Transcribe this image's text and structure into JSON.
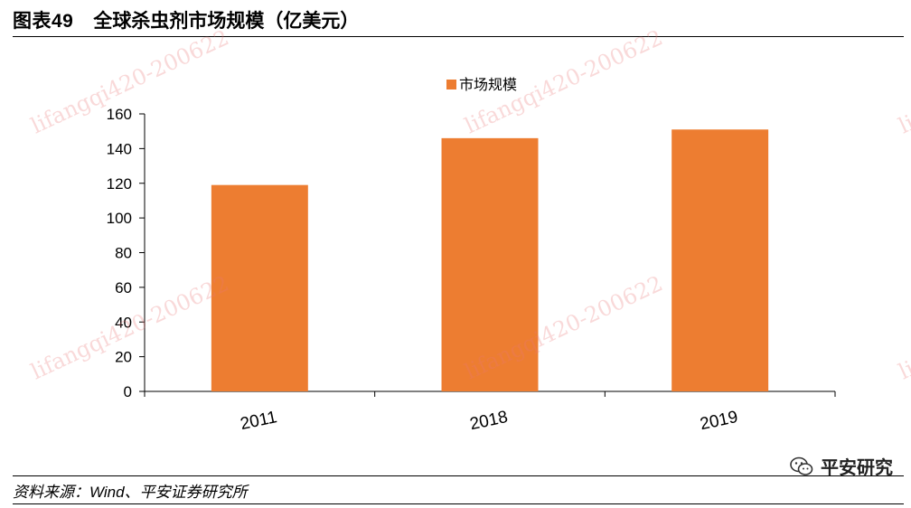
{
  "title": {
    "number": "图表49",
    "text": "全球杀虫剂市场规模（亿美元）"
  },
  "source": "资料来源：Wind、平安证券研究所",
  "brand": {
    "name": "平安研究",
    "icon": "wechat-icon"
  },
  "watermark": "lifangqi420-200622",
  "colors": {
    "bar": "#ED7D31",
    "axis": "#000000"
  },
  "chart_data": {
    "type": "bar",
    "categories": [
      "2011",
      "2018",
      "2019"
    ],
    "series": [
      {
        "name": "市场规模",
        "values": [
          119,
          146,
          151
        ]
      }
    ],
    "ylim": [
      0,
      160
    ],
    "yticks": [
      0,
      20,
      40,
      60,
      80,
      100,
      120,
      140,
      160
    ],
    "legend": "top-center",
    "grid": false
  }
}
